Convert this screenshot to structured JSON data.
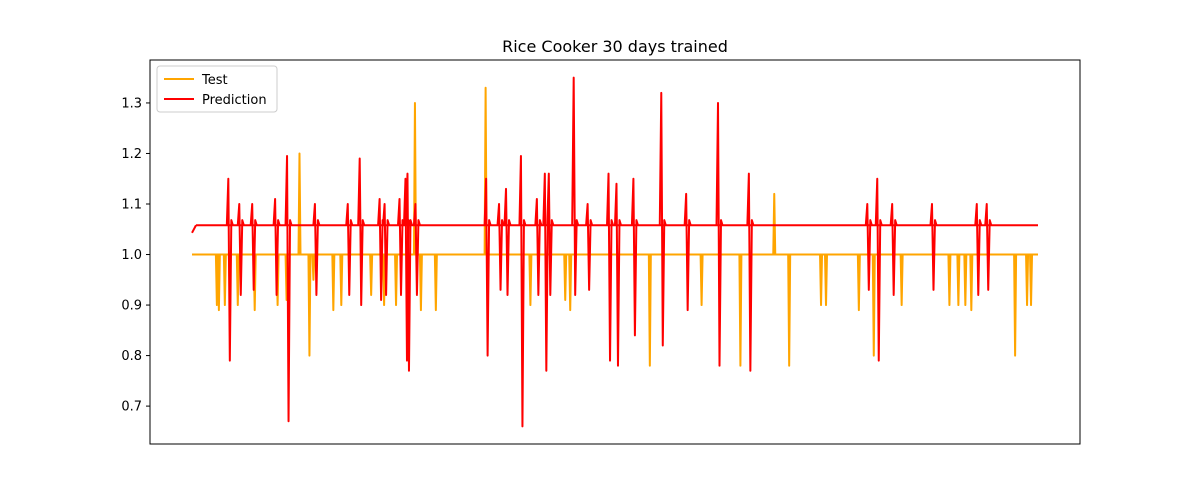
{
  "chart_data": {
    "type": "line",
    "title": "Rice Cooker 30 days trained",
    "xlabel": "",
    "ylabel": "",
    "x_range": [
      0,
      850
    ],
    "ylim": [
      0.625,
      1.385
    ],
    "y_ticks": [
      "0.7",
      "0.8",
      "0.9",
      "1.0",
      "1.1",
      "1.2",
      "1.3"
    ],
    "show_x_ticks": false,
    "grid": false,
    "legend_position": "upper-left",
    "series": [
      {
        "name": "Test",
        "color": "#ffa500",
        "baseline": 1.0,
        "spikes": [
          {
            "x": 25,
            "y": 0.9
          },
          {
            "x": 27,
            "y": 0.89
          },
          {
            "x": 33,
            "y": 0.9
          },
          {
            "x": 38,
            "y": 0.92
          },
          {
            "x": 46,
            "y": 0.9
          },
          {
            "x": 63,
            "y": 0.89
          },
          {
            "x": 86,
            "y": 0.9
          },
          {
            "x": 95,
            "y": 0.91
          },
          {
            "x": 108,
            "y": 1.2
          },
          {
            "x": 118,
            "y": 0.8
          },
          {
            "x": 122,
            "y": 0.95
          },
          {
            "x": 142,
            "y": 0.89
          },
          {
            "x": 150,
            "y": 0.9
          },
          {
            "x": 180,
            "y": 0.92
          },
          {
            "x": 193,
            "y": 0.9
          },
          {
            "x": 205,
            "y": 0.9
          },
          {
            "x": 217,
            "y": 0.92
          },
          {
            "x": 224,
            "y": 1.3
          },
          {
            "x": 230,
            "y": 0.89
          },
          {
            "x": 245,
            "y": 0.89
          },
          {
            "x": 295,
            "y": 1.33
          },
          {
            "x": 340,
            "y": 0.9
          },
          {
            "x": 375,
            "y": 0.91
          },
          {
            "x": 380,
            "y": 0.89
          },
          {
            "x": 460,
            "y": 0.78
          },
          {
            "x": 512,
            "y": 0.9
          },
          {
            "x": 551,
            "y": 0.78
          },
          {
            "x": 585,
            "y": 1.12
          },
          {
            "x": 600,
            "y": 0.78
          },
          {
            "x": 632,
            "y": 0.9
          },
          {
            "x": 637,
            "y": 0.9
          },
          {
            "x": 670,
            "y": 0.89
          },
          {
            "x": 685,
            "y": 0.8
          },
          {
            "x": 713,
            "y": 0.9
          },
          {
            "x": 761,
            "y": 0.9
          },
          {
            "x": 770,
            "y": 0.9
          },
          {
            "x": 777,
            "y": 0.9
          },
          {
            "x": 783,
            "y": 0.89
          },
          {
            "x": 827,
            "y": 0.8
          },
          {
            "x": 839,
            "y": 0.9
          },
          {
            "x": 843,
            "y": 0.9
          }
        ]
      },
      {
        "name": "Prediction",
        "color": "#ff0000",
        "baseline": 1.058,
        "spikes": [
          {
            "x": 38,
            "y": 0.79,
            "hi": 1.15
          },
          {
            "x": 49,
            "y": 0.92,
            "hi": 1.1
          },
          {
            "x": 62,
            "y": 0.93,
            "hi": 1.1
          },
          {
            "x": 85,
            "y": 0.92,
            "hi": 1.11
          },
          {
            "x": 97,
            "y": 0.67,
            "hi": 1.195
          },
          {
            "x": 125,
            "y": 0.92,
            "hi": 1.1
          },
          {
            "x": 158,
            "y": 0.92,
            "hi": 1.1
          },
          {
            "x": 170,
            "y": 0.9,
            "hi": 1.19
          },
          {
            "x": 190,
            "y": 0.91,
            "hi": 1.11
          },
          {
            "x": 195,
            "y": 0.92,
            "hi": 1.1
          },
          {
            "x": 210,
            "y": 0.92,
            "hi": 1.11
          },
          {
            "x": 216,
            "y": 0.79,
            "hi": 1.15
          },
          {
            "x": 218,
            "y": 0.77,
            "hi": 1.16
          },
          {
            "x": 226,
            "y": 0.92,
            "hi": 1.1
          },
          {
            "x": 297,
            "y": 0.8,
            "hi": 1.15
          },
          {
            "x": 310,
            "y": 0.93,
            "hi": 1.1
          },
          {
            "x": 317,
            "y": 0.92,
            "hi": 1.13
          },
          {
            "x": 332,
            "y": 0.66,
            "hi": 1.195
          },
          {
            "x": 348,
            "y": 0.92,
            "hi": 1.11
          },
          {
            "x": 356,
            "y": 0.77,
            "hi": 1.16
          },
          {
            "x": 360,
            "y": 0.92,
            "hi": 1.16
          },
          {
            "x": 385,
            "y": 0.92,
            "hi": 1.35
          },
          {
            "x": 399,
            "y": 0.93,
            "hi": 1.1
          },
          {
            "x": 420,
            "y": 0.79,
            "hi": 1.16
          },
          {
            "x": 428,
            "y": 0.78,
            "hi": 1.14
          },
          {
            "x": 445,
            "y": 0.84,
            "hi": 1.15
          },
          {
            "x": 473,
            "y": 0.82,
            "hi": 1.32
          },
          {
            "x": 498,
            "y": 0.89,
            "hi": 1.12
          },
          {
            "x": 530,
            "y": 0.78,
            "hi": 1.3
          },
          {
            "x": 561,
            "y": 0.77,
            "hi": 1.16
          },
          {
            "x": 680,
            "y": 0.93,
            "hi": 1.1
          },
          {
            "x": 690,
            "y": 0.79,
            "hi": 1.15
          },
          {
            "x": 705,
            "y": 0.92,
            "hi": 1.1
          },
          {
            "x": 745,
            "y": 0.93,
            "hi": 1.1
          },
          {
            "x": 790,
            "y": 0.92,
            "hi": 1.1
          },
          {
            "x": 800,
            "y": 0.93,
            "hi": 1.1
          }
        ]
      }
    ]
  }
}
